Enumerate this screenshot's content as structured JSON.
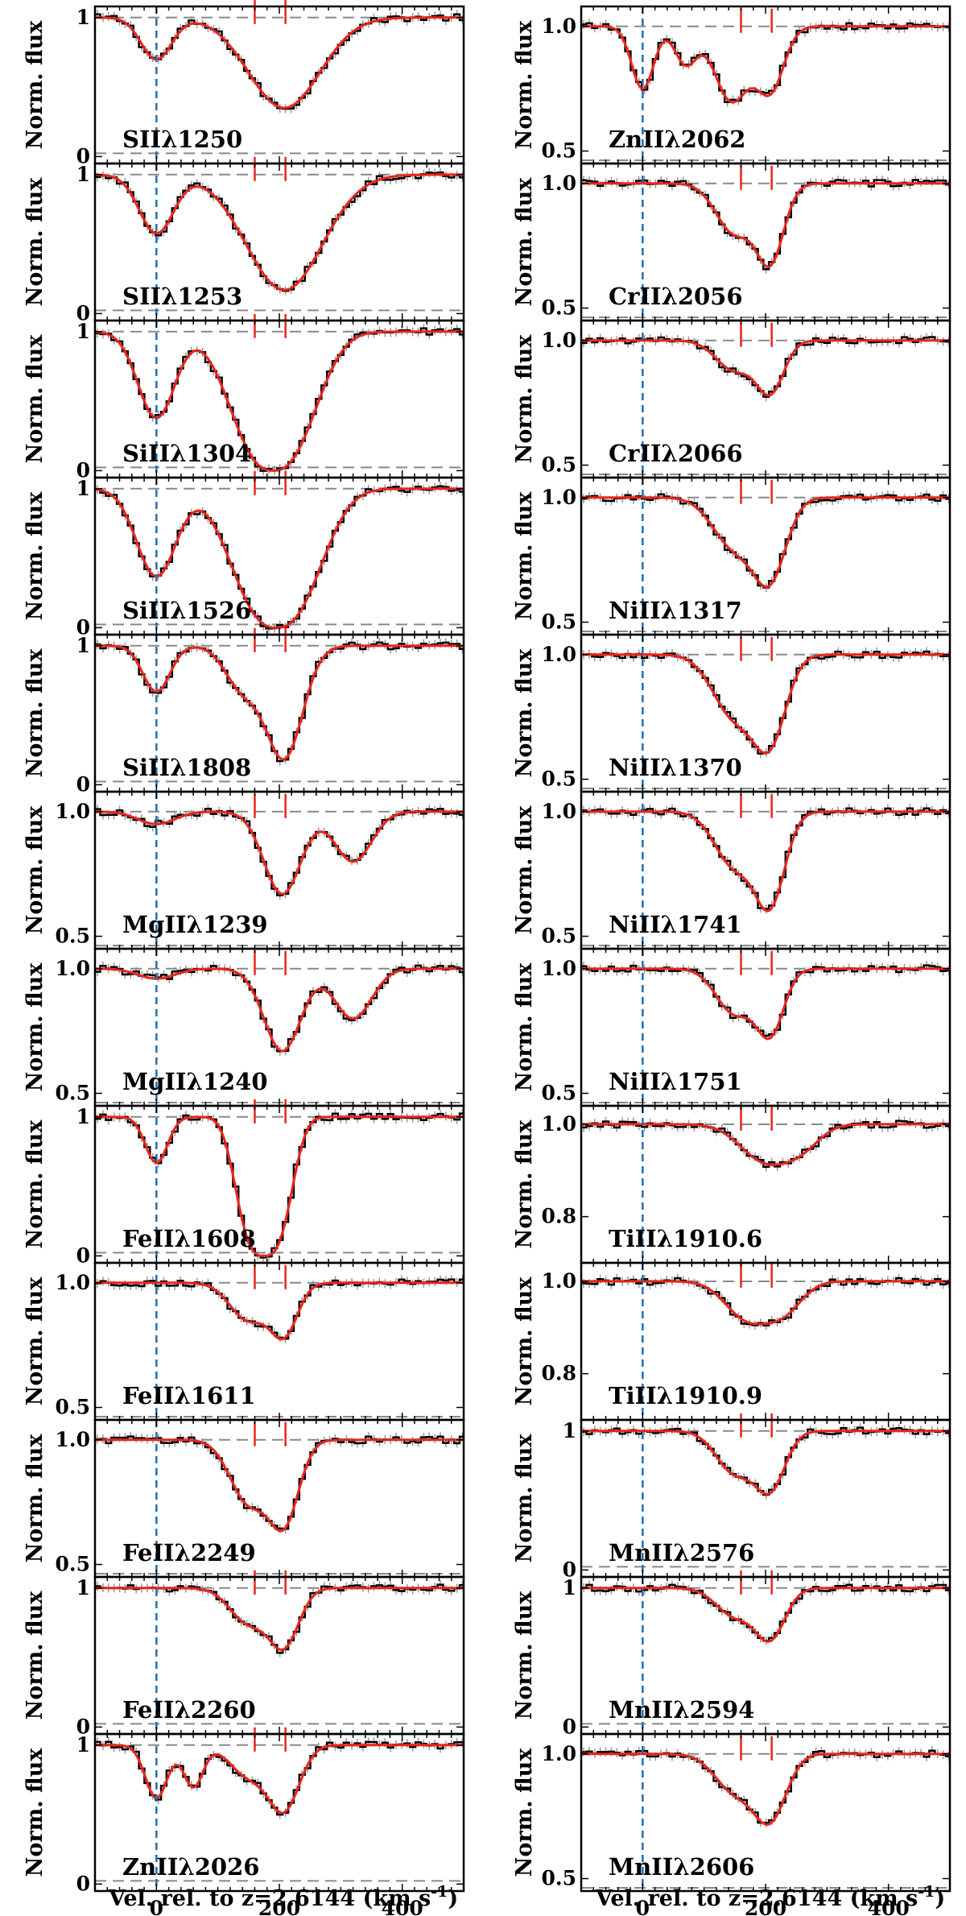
{
  "chart_data": {
    "type": "line",
    "title": "",
    "xlabel": "Vel. rel. to z=2.6144 (km s$^{-1}$)",
    "xlim": [
      -100,
      500
    ],
    "xticks": [
      0,
      200,
      400
    ],
    "ylabel": "Norm. flux",
    "component_markers_kms": [
      160,
      210
    ],
    "reference_velocity_kms": 0,
    "series_styles": {
      "data": "#000000",
      "model": "#e8251c",
      "zero_line": "#1f6fb5",
      "guides": "#888888"
    },
    "columns": [
      [
        {
          "label": "SIIλ1250",
          "ylim": [
            -0.05,
            1.08
          ],
          "yticks": [
            0,
            1
          ],
          "ytick_labels": [
            "0",
            "1"
          ],
          "continuum_level": 1,
          "zero_guide": 0,
          "components": [
            {
              "v": 0,
              "depth": 0.3,
              "sigma": 25
            },
            {
              "v": 208,
              "depth": 0.65,
              "sigma": 58
            }
          ]
        },
        {
          "label": "SIIλ1253",
          "ylim": [
            -0.05,
            1.08
          ],
          "yticks": [
            0,
            1
          ],
          "ytick_labels": [
            "0",
            "1"
          ],
          "continuum_level": 1,
          "zero_guide": 0,
          "components": [
            {
              "v": 0,
              "depth": 0.42,
              "sigma": 28
            },
            {
              "v": 208,
              "depth": 0.83,
              "sigma": 62
            }
          ]
        },
        {
          "label": "SiIIλ1304",
          "ylim": [
            -0.05,
            1.08
          ],
          "yticks": [
            0,
            1
          ],
          "ytick_labels": [
            "0",
            "1"
          ],
          "continuum_level": 1,
          "zero_guide": 0,
          "components": [
            {
              "v": 0,
              "depth": 0.62,
              "sigma": 30
            },
            {
              "v": 190,
              "depth": 1.0,
              "sigma": 65,
              "power": 2.5
            }
          ]
        },
        {
          "label": "SiIIλ1526",
          "ylim": [
            -0.05,
            1.08
          ],
          "yticks": [
            0,
            1
          ],
          "ytick_labels": [
            "0",
            "1"
          ],
          "continuum_level": 1,
          "zero_guide": 0,
          "components": [
            {
              "v": 0,
              "depth": 0.63,
              "sigma": 32
            },
            {
              "v": 195,
              "depth": 1.0,
              "sigma": 68,
              "power": 2.5
            }
          ]
        },
        {
          "label": "SiIIλ1808",
          "ylim": [
            -0.05,
            1.08
          ],
          "yticks": [
            0,
            1
          ],
          "ytick_labels": [
            "0",
            "1"
          ],
          "continuum_level": 1,
          "zero_guide": 0,
          "components": [
            {
              "v": 0,
              "depth": 0.33,
              "sigma": 22
            },
            {
              "v": 140,
              "depth": 0.3,
              "sigma": 28
            },
            {
              "v": 208,
              "depth": 0.8,
              "sigma": 30
            }
          ]
        },
        {
          "label": "MgIIλ1239",
          "ylim": [
            0.45,
            1.08
          ],
          "yticks": [
            0.5,
            1.0
          ],
          "ytick_labels": [
            "0.5",
            "1.0"
          ],
          "continuum_level": 1,
          "zero_guide": 0.45,
          "components": [
            {
              "v": 0,
              "depth": 0.05,
              "sigma": 30
            },
            {
              "v": 205,
              "depth": 0.33,
              "sigma": 30
            },
            {
              "v": 320,
              "depth": 0.2,
              "sigma": 30
            }
          ]
        },
        {
          "label": "MgIIλ1240",
          "ylim": [
            0.45,
            1.08
          ],
          "yticks": [
            0.5,
            1.0
          ],
          "ytick_labels": [
            "0.5",
            "1.0"
          ],
          "continuum_level": 1,
          "zero_guide": 0.45,
          "components": [
            {
              "v": 0,
              "depth": 0.04,
              "sigma": 30
            },
            {
              "v": 205,
              "depth": 0.33,
              "sigma": 30
            },
            {
              "v": 320,
              "depth": 0.2,
              "sigma": 30
            }
          ]
        },
        {
          "label": "FeIIλ1608",
          "ylim": [
            -0.05,
            1.08
          ],
          "yticks": [
            0,
            1
          ],
          "ytick_labels": [
            "0",
            "1"
          ],
          "continuum_level": 1,
          "zero_guide": 0,
          "components": [
            {
              "v": 0,
              "depth": 0.33,
              "sigma": 18
            },
            {
              "v": 175,
              "depth": 1.0,
              "sigma": 42,
              "power": 3
            }
          ]
        },
        {
          "label": "FeIIλ1611",
          "ylim": [
            0.45,
            1.08
          ],
          "yticks": [
            0.5,
            1.0
          ],
          "ytick_labels": [
            "0.5",
            "1.0"
          ],
          "continuum_level": 1,
          "zero_guide": 0.45,
          "components": [
            {
              "v": 150,
              "depth": 0.15,
              "sigma": 30
            },
            {
              "v": 208,
              "depth": 0.2,
              "sigma": 22
            }
          ]
        },
        {
          "label": "FeIIλ2249",
          "ylim": [
            0.45,
            1.08
          ],
          "yticks": [
            0.5,
            1.0
          ],
          "ytick_labels": [
            "0.5",
            "1.0"
          ],
          "continuum_level": 1,
          "zero_guide": 0.45,
          "components": [
            {
              "v": 150,
              "depth": 0.25,
              "sigma": 30
            },
            {
              "v": 208,
              "depth": 0.32,
              "sigma": 24
            }
          ]
        },
        {
          "label": "FeIIλ2260",
          "ylim": [
            -0.05,
            1.08
          ],
          "yticks": [
            0,
            1
          ],
          "ytick_labels": [
            "0",
            "1"
          ],
          "continuum_level": 1,
          "zero_guide": 0,
          "components": [
            {
              "v": 150,
              "depth": 0.25,
              "sigma": 30
            },
            {
              "v": 208,
              "depth": 0.4,
              "sigma": 24
            }
          ]
        },
        {
          "label": "ZnIIλ2026",
          "ylim": [
            -0.05,
            1.08
          ],
          "yticks": [
            0,
            1
          ],
          "ytick_labels": [
            "0",
            "1"
          ],
          "continuum_level": 1,
          "zero_guide": 0,
          "components": [
            {
              "v": 0,
              "depth": 0.38,
              "sigma": 18
            },
            {
              "v": 60,
              "depth": 0.3,
              "sigma": 16
            },
            {
              "v": 150,
              "depth": 0.22,
              "sigma": 30
            },
            {
              "v": 208,
              "depth": 0.45,
              "sigma": 25
            }
          ]
        }
      ],
      [
        {
          "label": "ZnIIλ2062",
          "ylim": [
            0.45,
            1.08
          ],
          "yticks": [
            0.5,
            1.0
          ],
          "ytick_labels": [
            "0.5",
            "1.0"
          ],
          "continuum_level": 1,
          "zero_guide": 0.45,
          "components": [
            {
              "v": 0,
              "depth": 0.25,
              "sigma": 18
            },
            {
              "v": 70,
              "depth": 0.15,
              "sigma": 18
            },
            {
              "v": 145,
              "depth": 0.3,
              "sigma": 28
            },
            {
              "v": 208,
              "depth": 0.25,
              "sigma": 22
            }
          ]
        },
        {
          "label": "CrIIλ2056",
          "ylim": [
            0.45,
            1.08
          ],
          "yticks": [
            0.5,
            1.0
          ],
          "ytick_labels": [
            "0.5",
            "1.0"
          ],
          "continuum_level": 1,
          "zero_guide": 0.45,
          "components": [
            {
              "v": 150,
              "depth": 0.2,
              "sigma": 30
            },
            {
              "v": 208,
              "depth": 0.3,
              "sigma": 22
            }
          ]
        },
        {
          "label": "CrIIλ2066",
          "ylim": [
            0.45,
            1.08
          ],
          "yticks": [
            0.5,
            1.0
          ],
          "ytick_labels": [
            "0.5",
            "1.0"
          ],
          "continuum_level": 1,
          "zero_guide": 0.45,
          "components": [
            {
              "v": 150,
              "depth": 0.12,
              "sigma": 30
            },
            {
              "v": 208,
              "depth": 0.2,
              "sigma": 22
            }
          ]
        },
        {
          "label": "NiIIλ1317",
          "ylim": [
            0.45,
            1.08
          ],
          "yticks": [
            0.5,
            1.0
          ],
          "ytick_labels": [
            "0.5",
            "1.0"
          ],
          "continuum_level": 1,
          "zero_guide": 0.45,
          "components": [
            {
              "v": 150,
              "depth": 0.2,
              "sigma": 35
            },
            {
              "v": 208,
              "depth": 0.3,
              "sigma": 26
            }
          ]
        },
        {
          "label": "NiIIλ1370",
          "ylim": [
            0.45,
            1.08
          ],
          "yticks": [
            0.5,
            1.0
          ],
          "ytick_labels": [
            "0.5",
            "1.0"
          ],
          "continuum_level": 1,
          "zero_guide": 0.45,
          "components": [
            {
              "v": 150,
              "depth": 0.25,
              "sigma": 35
            },
            {
              "v": 208,
              "depth": 0.32,
              "sigma": 26
            }
          ]
        },
        {
          "label": "NiIIλ1741",
          "ylim": [
            0.45,
            1.08
          ],
          "yticks": [
            0.5,
            1.0
          ],
          "ytick_labels": [
            "0.5",
            "1.0"
          ],
          "continuum_level": 1,
          "zero_guide": 0.45,
          "components": [
            {
              "v": 150,
              "depth": 0.22,
              "sigma": 32
            },
            {
              "v": 208,
              "depth": 0.35,
              "sigma": 24
            }
          ]
        },
        {
          "label": "NiIIλ1751",
          "ylim": [
            0.45,
            1.08
          ],
          "yticks": [
            0.5,
            1.0
          ],
          "ytick_labels": [
            "0.5",
            "1.0"
          ],
          "continuum_level": 1,
          "zero_guide": 0.45,
          "components": [
            {
              "v": 150,
              "depth": 0.18,
              "sigma": 30
            },
            {
              "v": 208,
              "depth": 0.25,
              "sigma": 22
            }
          ]
        },
        {
          "label": "TiIIλ1910.6",
          "ylim": [
            0.7,
            1.04
          ],
          "yticks": [
            0.8,
            1.0
          ],
          "ytick_labels": [
            "0.8",
            "1.0"
          ],
          "continuum_level": 1,
          "zero_guide": null,
          "components": [
            {
              "v": 200,
              "depth": 0.08,
              "sigma": 40
            },
            {
              "v": 260,
              "depth": 0.04,
              "sigma": 30
            }
          ]
        },
        {
          "label": "TiIIλ1910.9",
          "ylim": [
            0.7,
            1.04
          ],
          "yticks": [
            0.8,
            1.0
          ],
          "ytick_labels": [
            "0.8",
            "1.0"
          ],
          "continuum_level": 1,
          "zero_guide": null,
          "components": [
            {
              "v": 170,
              "depth": 0.08,
              "sigma": 35
            },
            {
              "v": 230,
              "depth": 0.06,
              "sigma": 30
            }
          ]
        },
        {
          "label": "MnIIλ2576",
          "ylim": [
            -0.05,
            1.08
          ],
          "yticks": [
            0,
            1
          ],
          "ytick_labels": [
            "0",
            "1"
          ],
          "continuum_level": 1,
          "zero_guide": 0,
          "components": [
            {
              "v": 150,
              "depth": 0.3,
              "sigma": 30
            },
            {
              "v": 208,
              "depth": 0.4,
              "sigma": 24
            }
          ]
        },
        {
          "label": "MnIIλ2594",
          "ylim": [
            -0.05,
            1.08
          ],
          "yticks": [
            0,
            1
          ],
          "ytick_labels": [
            "0",
            "1"
          ],
          "continuum_level": 1,
          "zero_guide": 0,
          "components": [
            {
              "v": 150,
              "depth": 0.2,
              "sigma": 30
            },
            {
              "v": 208,
              "depth": 0.35,
              "sigma": 24
            }
          ]
        },
        {
          "label": "MnIIλ2606",
          "ylim": [
            0.45,
            1.08
          ],
          "yticks": [
            0.5,
            1.0
          ],
          "ytick_labels": [
            "0.5",
            "1.0"
          ],
          "continuum_level": 1,
          "zero_guide": 0.45,
          "components": [
            {
              "v": 150,
              "depth": 0.15,
              "sigma": 32
            },
            {
              "v": 208,
              "depth": 0.25,
              "sigma": 26
            }
          ]
        }
      ]
    ]
  }
}
